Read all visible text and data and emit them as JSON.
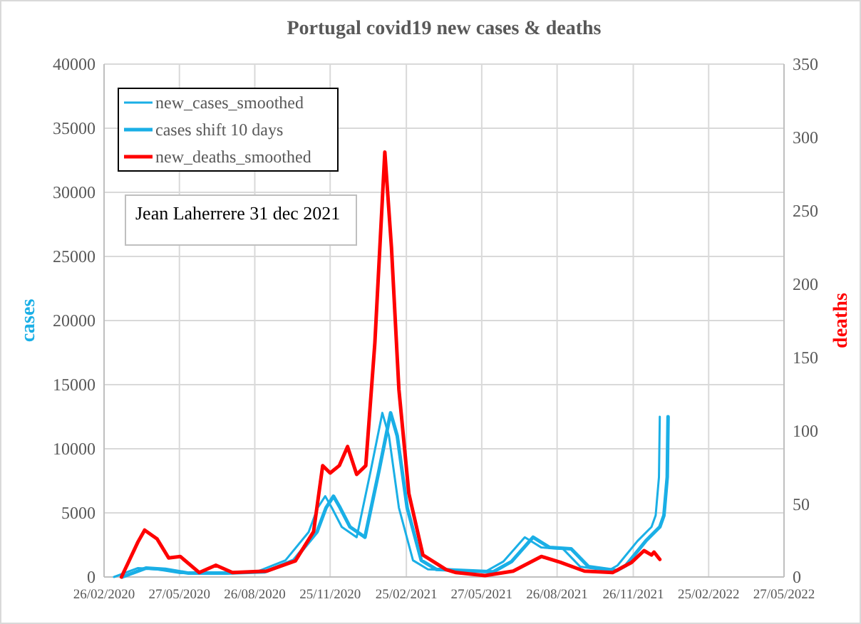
{
  "chart_data": {
    "type": "line",
    "title": "Portugal covid19 new cases & deaths",
    "ylabel": "cases",
    "y2label": "deaths",
    "annotations": [
      "Jean Laherrere 31 dec 2021"
    ],
    "xlim": [
      "2020-02-26",
      "2022-05-27"
    ],
    "xticks": [
      {
        "value": "2020-02-26",
        "label": "26/02/2020"
      },
      {
        "value": "2020-05-27",
        "label": "27/05/2020"
      },
      {
        "value": "2020-08-26",
        "label": "26/08/2020"
      },
      {
        "value": "2020-11-25",
        "label": "25/11/2020"
      },
      {
        "value": "2021-02-25",
        "label": "25/02/2021"
      },
      {
        "value": "2021-05-27",
        "label": "27/05/2021"
      },
      {
        "value": "2021-08-26",
        "label": "26/08/2021"
      },
      {
        "value": "2021-11-26",
        "label": "26/11/2021"
      },
      {
        "value": "2022-02-25",
        "label": "25/02/2022"
      },
      {
        "value": "2022-05-27",
        "label": "27/05/2022"
      }
    ],
    "ylim": [
      0,
      40000
    ],
    "yticks": [
      0,
      5000,
      10000,
      15000,
      20000,
      25000,
      30000,
      35000,
      40000
    ],
    "y2lim": [
      0,
      350
    ],
    "y2ticks": [
      0,
      50,
      100,
      150,
      200,
      250,
      300,
      350
    ],
    "grid": true,
    "legend": "top left",
    "line_style": "solid",
    "series": [
      {
        "name": "new_cases_smoothed",
        "color": "#1aafe6",
        "x": [
          "2020-03-09",
          "2020-04-07",
          "2020-04-30",
          "2020-05-28",
          "2020-07-13",
          "2020-08-28",
          "2020-10-02",
          "2020-10-30",
          "2020-11-10",
          "2020-11-19",
          "2020-11-27",
          "2020-12-09",
          "2020-12-27",
          "2021-01-13",
          "2021-01-27",
          "2021-02-04",
          "2021-02-16",
          "2021-03-05",
          "2021-03-23",
          "2021-05-31",
          "2021-06-22",
          "2021-07-18",
          "2021-08-07",
          "2021-09-02",
          "2021-09-23",
          "2021-10-27",
          "2021-11-07",
          "2021-12-01",
          "2021-12-18",
          "2021-12-23",
          "2021-12-27",
          "2021-12-28"
        ],
        "values": [
          0,
          700,
          600,
          300,
          300,
          400,
          1300,
          3500,
          5400,
          6300,
          5400,
          3900,
          3100,
          8300,
          12800,
          11000,
          5400,
          1300,
          600,
          400,
          1200,
          3100,
          2300,
          2200,
          800,
          500,
          900,
          2800,
          3900,
          4800,
          7800,
          12500
        ]
      },
      {
        "name": "cases shift 10 days",
        "color": "#1aafe6",
        "x": [
          "2020-03-19",
          "2020-04-17",
          "2020-05-10",
          "2020-06-07",
          "2020-07-23",
          "2020-09-07",
          "2020-10-12",
          "2020-11-09",
          "2020-11-20",
          "2020-11-29",
          "2020-12-07",
          "2020-12-19",
          "2021-01-06",
          "2021-01-23",
          "2021-02-06",
          "2021-02-14",
          "2021-02-26",
          "2021-03-15",
          "2021-04-02",
          "2021-06-10",
          "2021-07-02",
          "2021-07-28",
          "2021-08-17",
          "2021-09-12",
          "2021-10-03",
          "2021-11-06",
          "2021-11-17",
          "2021-12-11",
          "2021-12-28",
          "2022-01-02",
          "2022-01-06",
          "2022-01-07"
        ],
        "values": [
          0,
          700,
          600,
          300,
          300,
          400,
          1300,
          3500,
          5400,
          6300,
          5400,
          3900,
          3100,
          8300,
          12800,
          11000,
          5400,
          1300,
          600,
          400,
          1200,
          3100,
          2300,
          2200,
          800,
          500,
          900,
          2800,
          3900,
          4800,
          7800,
          12500
        ]
      },
      {
        "name": "new_deaths_smoothed",
        "color": "#ff0000",
        "axis": "y2",
        "x": [
          "2020-03-18",
          "2020-04-07",
          "2020-04-15",
          "2020-04-30",
          "2020-05-14",
          "2020-05-28",
          "2020-06-20",
          "2020-07-10",
          "2020-07-30",
          "2020-09-09",
          "2020-10-14",
          "2020-11-05",
          "2020-11-16",
          "2020-11-25",
          "2020-12-06",
          "2020-12-16",
          "2020-12-27",
          "2021-01-07",
          "2021-01-18",
          "2021-01-30",
          "2021-02-07",
          "2021-02-16",
          "2021-02-28",
          "2021-03-17",
          "2021-04-14",
          "2021-04-26",
          "2021-05-31",
          "2021-07-04",
          "2021-08-07",
          "2021-08-30",
          "2021-09-28",
          "2021-11-01",
          "2021-11-24",
          "2021-12-09",
          "2021-12-18",
          "2021-12-21",
          "2021-12-28"
        ],
        "values": [
          0,
          24,
          32,
          26,
          13,
          14,
          3,
          8,
          3,
          4,
          11,
          31,
          76,
          71,
          76,
          89,
          70,
          76,
          160,
          290,
          225,
          128,
          57,
          15,
          5,
          3,
          1,
          4,
          14,
          10,
          4,
          3,
          10,
          18,
          15,
          17,
          12
        ]
      }
    ]
  }
}
